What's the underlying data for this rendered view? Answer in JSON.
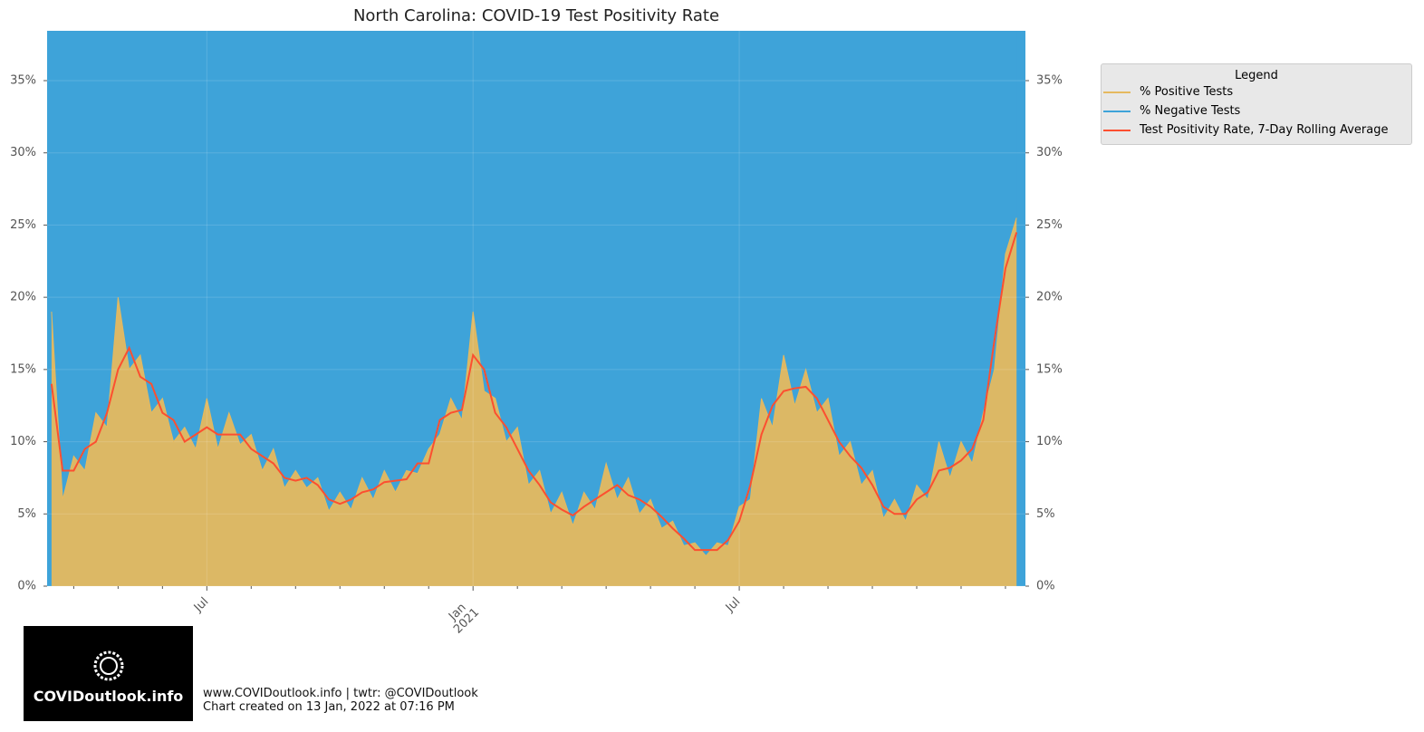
{
  "chart_data": {
    "type": "area",
    "title": "North Carolina: COVID-19 Test Positivity Rate",
    "x": [
      2.5,
      2.75,
      3,
      3.25,
      3.5,
      3.75,
      4,
      4.25,
      4.5,
      4.75,
      5,
      5.25,
      5.5,
      5.75,
      6,
      6.25,
      6.5,
      6.75,
      7,
      7.25,
      7.5,
      7.75,
      8,
      8.25,
      8.5,
      8.75,
      9,
      9.25,
      9.5,
      9.75,
      10,
      10.25,
      10.5,
      10.75,
      11,
      11.25,
      11.5,
      11.75,
      12,
      12.25,
      12.5,
      12.75,
      13,
      13.25,
      13.5,
      13.75,
      14,
      14.25,
      14.5,
      14.75,
      15,
      15.25,
      15.5,
      15.75,
      16,
      16.25,
      16.5,
      16.75,
      17,
      17.25,
      17.5,
      17.75,
      18,
      18.25,
      18.5,
      18.75,
      19,
      19.25,
      19.5,
      19.75,
      20,
      20.25,
      20.5,
      20.75,
      21,
      21.25,
      21.5,
      21.75,
      22,
      22.25,
      22.5,
      22.75,
      23,
      23.25,
      23.5,
      23.75,
      24,
      24.25
    ],
    "series": [
      {
        "name": "% Positive Tests",
        "color": "#e5b95f",
        "values": [
          19,
          6,
          9,
          8,
          12,
          11,
          20,
          15,
          16,
          12,
          13,
          10,
          11,
          9.5,
          13,
          9.5,
          12,
          9.8,
          10.5,
          8,
          9.5,
          6.8,
          8,
          6.8,
          7.5,
          5.2,
          6.5,
          5.3,
          7.5,
          6,
          8,
          6.5,
          8,
          7.8,
          9.5,
          10.5,
          13,
          11.5,
          19,
          13.5,
          13,
          10,
          11,
          7,
          8,
          5,
          6.5,
          4.2,
          6.5,
          5.3,
          8.5,
          6,
          7.5,
          5,
          6,
          4,
          4.5,
          2.8,
          3,
          2.1,
          3,
          2.8,
          5.5,
          6,
          13,
          11,
          16,
          12.5,
          15,
          12,
          13,
          9,
          10,
          7,
          8,
          4.7,
          6,
          4.5,
          7,
          6,
          10,
          7.5,
          10,
          8.5,
          12,
          15,
          23,
          25.5
        ]
      },
      {
        "name": "% Negative Tests",
        "color": "#3ea3d9",
        "values": [
          81,
          94,
          91,
          92,
          88,
          89,
          80,
          85,
          84,
          88,
          87,
          90,
          89,
          90.5,
          87,
          90.5,
          88,
          90.2,
          89.5,
          92,
          90.5,
          93.2,
          92,
          93.2,
          92.5,
          94.8,
          93.5,
          94.7,
          92.5,
          94,
          92,
          93.5,
          92,
          92.2,
          90.5,
          89.5,
          87,
          88.5,
          81,
          86.5,
          87,
          90,
          89,
          93,
          92,
          95,
          93.5,
          95.8,
          93.5,
          94.7,
          91.5,
          94,
          92.5,
          95,
          94,
          96,
          95.5,
          97.2,
          97,
          97.9,
          97,
          97.2,
          94.5,
          94,
          87,
          89,
          84,
          87.5,
          85,
          88,
          87,
          91,
          90,
          93,
          92,
          95.3,
          94,
          95.5,
          93,
          94,
          90,
          92.5,
          90,
          91.5,
          88,
          85,
          77,
          74.5
        ]
      },
      {
        "name": "Test Positivity Rate, 7-Day Rolling Average",
        "color": "#fc4f30",
        "values": [
          14,
          8,
          8,
          9.5,
          10,
          12,
          15,
          16.5,
          14.5,
          14,
          12,
          11.5,
          10,
          10.5,
          11,
          10.5,
          10.5,
          10.5,
          9.5,
          9,
          8.5,
          7.5,
          7.3,
          7.5,
          7,
          6,
          5.7,
          6,
          6.5,
          6.7,
          7.2,
          7.3,
          7.4,
          8.5,
          8.5,
          11.5,
          12,
          12.2,
          16,
          15,
          12,
          11,
          9.5,
          8,
          7,
          5.8,
          5.3,
          4.9,
          5.5,
          6,
          6.5,
          7,
          6.3,
          6,
          5.5,
          4.8,
          4,
          3.3,
          2.5,
          2.5,
          2.5,
          3.2,
          4.5,
          7,
          10.5,
          12.5,
          13.5,
          13.7,
          13.8,
          13,
          11.5,
          10,
          9,
          8.2,
          7,
          5.5,
          5,
          5,
          6,
          6.5,
          8,
          8.2,
          8.7,
          9.5,
          11.5,
          17,
          22,
          24.5
        ]
      }
    ],
    "xlim": [
      2.4,
      24.45
    ],
    "xticks": [
      {
        "value": 6,
        "label": "Jul"
      },
      {
        "value": 12,
        "label": "Jan\n2021"
      },
      {
        "value": 18,
        "label": "Jul"
      }
    ],
    "xminorticks": [
      3,
      4,
      5,
      7,
      8,
      9,
      10,
      11,
      13,
      14,
      15,
      16,
      17,
      19,
      20,
      21,
      22,
      23,
      24
    ],
    "ylim": [
      0,
      38.45
    ],
    "yticks": [
      {
        "value": 0,
        "label": "0%"
      },
      {
        "value": 5,
        "label": "5%"
      },
      {
        "value": 10,
        "label": "10%"
      },
      {
        "value": 15,
        "label": "15%"
      },
      {
        "value": 20,
        "label": "20%"
      },
      {
        "value": 25,
        "label": "25%"
      },
      {
        "value": 30,
        "label": "30%"
      },
      {
        "value": 35,
        "label": "35%"
      }
    ],
    "grid": true,
    "legend_title": "Legend",
    "legend_position": "outside right",
    "logo_text": "COVIDoutlook.info",
    "footer": [
      "www.COVIDoutlook.info | twtr: @COVIDoutlook",
      "Chart created on 13 Jan, 2022 at 07:16 PM"
    ]
  }
}
